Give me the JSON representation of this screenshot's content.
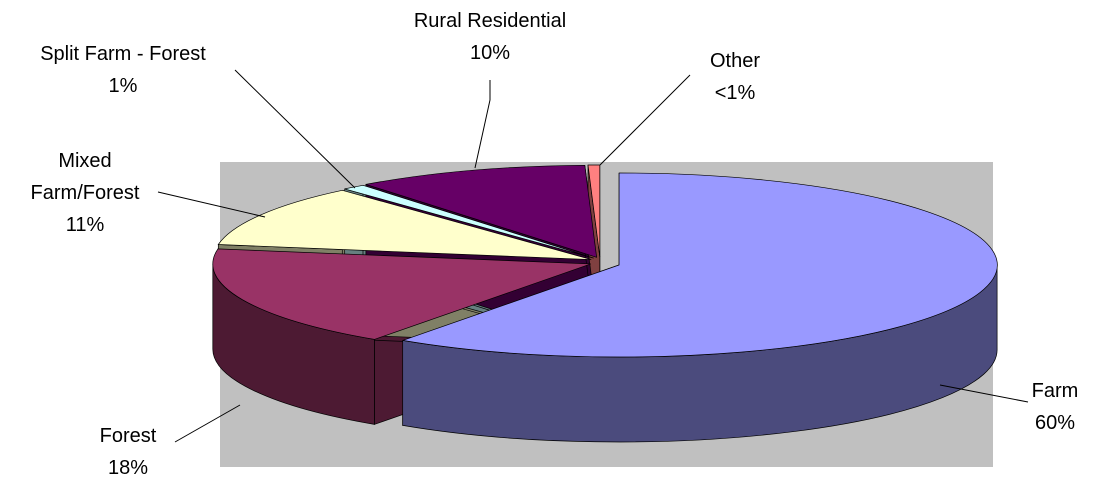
{
  "chart_data": {
    "type": "pie",
    "categories": [
      "Farm",
      "Forest",
      "Mixed Farm/Forest",
      "Split Farm - Forest",
      "Rural Residential",
      "Other"
    ],
    "values": [
      60,
      18,
      11,
      1,
      10,
      0.5
    ],
    "value_labels": [
      "60%",
      "18%",
      "11%",
      "1%",
      "10%",
      "<1%"
    ],
    "colors": [
      "#9999ff",
      "#993366",
      "#ffffcc",
      "#ccffff",
      "#660066",
      "#ff8080"
    ],
    "side_colors": [
      "#4b4b7d",
      "#4d1a33",
      "#808066",
      "#668080",
      "#330033",
      "#804040"
    ]
  }
}
